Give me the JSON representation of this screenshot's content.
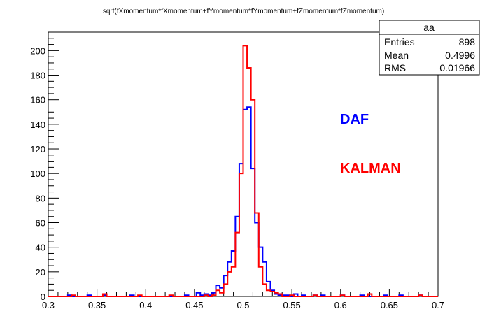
{
  "chart_data": {
    "type": "histogram",
    "title": "sqrt(fXmomentum*fXmomentum+fYmomentum*fYmomentum+fZmomentum*fZmomentum)",
    "xlabel": "",
    "ylabel": "",
    "xlim": [
      0.3,
      0.7
    ],
    "ylim": [
      0,
      215
    ],
    "x_ticks": [
      0.3,
      0.35,
      0.4,
      0.45,
      0.5,
      0.55,
      0.6,
      0.65,
      0.7
    ],
    "x_tick_labels": [
      "0.3",
      "0.35",
      "0.4",
      "0.45",
      "0.5",
      "0.55",
      "0.6",
      "0.65",
      "0.7"
    ],
    "y_ticks": [
      0,
      20,
      40,
      60,
      80,
      100,
      120,
      140,
      160,
      180,
      200
    ],
    "y_tick_labels": [
      "0",
      "20",
      "40",
      "60",
      "80",
      "100",
      "120",
      "140",
      "160",
      "180",
      "200"
    ],
    "grid": false,
    "bin_edges_range": [
      0.3,
      0.7
    ],
    "bin_width": 0.004,
    "series": [
      {
        "name": "DAF",
        "color": "#0000ff",
        "nonzero_bins": [
          [
            0.32,
            1
          ],
          [
            0.34,
            1
          ],
          [
            0.356,
            1
          ],
          [
            0.384,
            1
          ],
          [
            0.44,
            1
          ],
          [
            0.452,
            3
          ],
          [
            0.456,
            1
          ],
          [
            0.46,
            2
          ],
          [
            0.464,
            1
          ],
          [
            0.468,
            3
          ],
          [
            0.472,
            9
          ],
          [
            0.476,
            7
          ],
          [
            0.48,
            17
          ],
          [
            0.484,
            28
          ],
          [
            0.488,
            37
          ],
          [
            0.492,
            65
          ],
          [
            0.496,
            108
          ],
          [
            0.5,
            152
          ],
          [
            0.504,
            154
          ],
          [
            0.508,
            104
          ],
          [
            0.512,
            60
          ],
          [
            0.516,
            40
          ],
          [
            0.52,
            28
          ],
          [
            0.524,
            12
          ],
          [
            0.528,
            5
          ],
          [
            0.532,
            2
          ],
          [
            0.536,
            1
          ],
          [
            0.54,
            1
          ],
          [
            0.544,
            1
          ],
          [
            0.552,
            2
          ],
          [
            0.56,
            1
          ],
          [
            0.572,
            1
          ],
          [
            0.58,
            1
          ],
          [
            0.6,
            1
          ],
          [
            0.62,
            1
          ],
          [
            0.644,
            1
          ],
          [
            0.66,
            1
          ],
          [
            0.68,
            1
          ]
        ]
      },
      {
        "name": "KALMAN",
        "color": "#ff0000",
        "nonzero_bins": [
          [
            0.324,
            1
          ],
          [
            0.356,
            2
          ],
          [
            0.392,
            1
          ],
          [
            0.424,
            1
          ],
          [
            0.46,
            1
          ],
          [
            0.468,
            1
          ],
          [
            0.472,
            5
          ],
          [
            0.476,
            3
          ],
          [
            0.48,
            10
          ],
          [
            0.484,
            20
          ],
          [
            0.488,
            24
          ],
          [
            0.492,
            52
          ],
          [
            0.496,
            100
          ],
          [
            0.5,
            204
          ],
          [
            0.504,
            186
          ],
          [
            0.508,
            160
          ],
          [
            0.512,
            68
          ],
          [
            0.516,
            24
          ],
          [
            0.52,
            10
          ],
          [
            0.524,
            5
          ],
          [
            0.528,
            4
          ],
          [
            0.532,
            3
          ],
          [
            0.536,
            2
          ],
          [
            0.548,
            1
          ],
          [
            0.572,
            1
          ],
          [
            0.6,
            1
          ],
          [
            0.628,
            2
          ],
          [
            0.68,
            1
          ]
        ]
      }
    ],
    "stats": {
      "name": "aa",
      "rows": [
        {
          "label": "Entries",
          "value": "898"
        },
        {
          "label": "Mean",
          "value": "0.4996"
        },
        {
          "label": "RMS",
          "value": "0.01966"
        }
      ]
    },
    "legend": [
      {
        "text": "DAF",
        "color": "#0000ff"
      },
      {
        "text": "KALMAN",
        "color": "#ff0000"
      }
    ]
  }
}
